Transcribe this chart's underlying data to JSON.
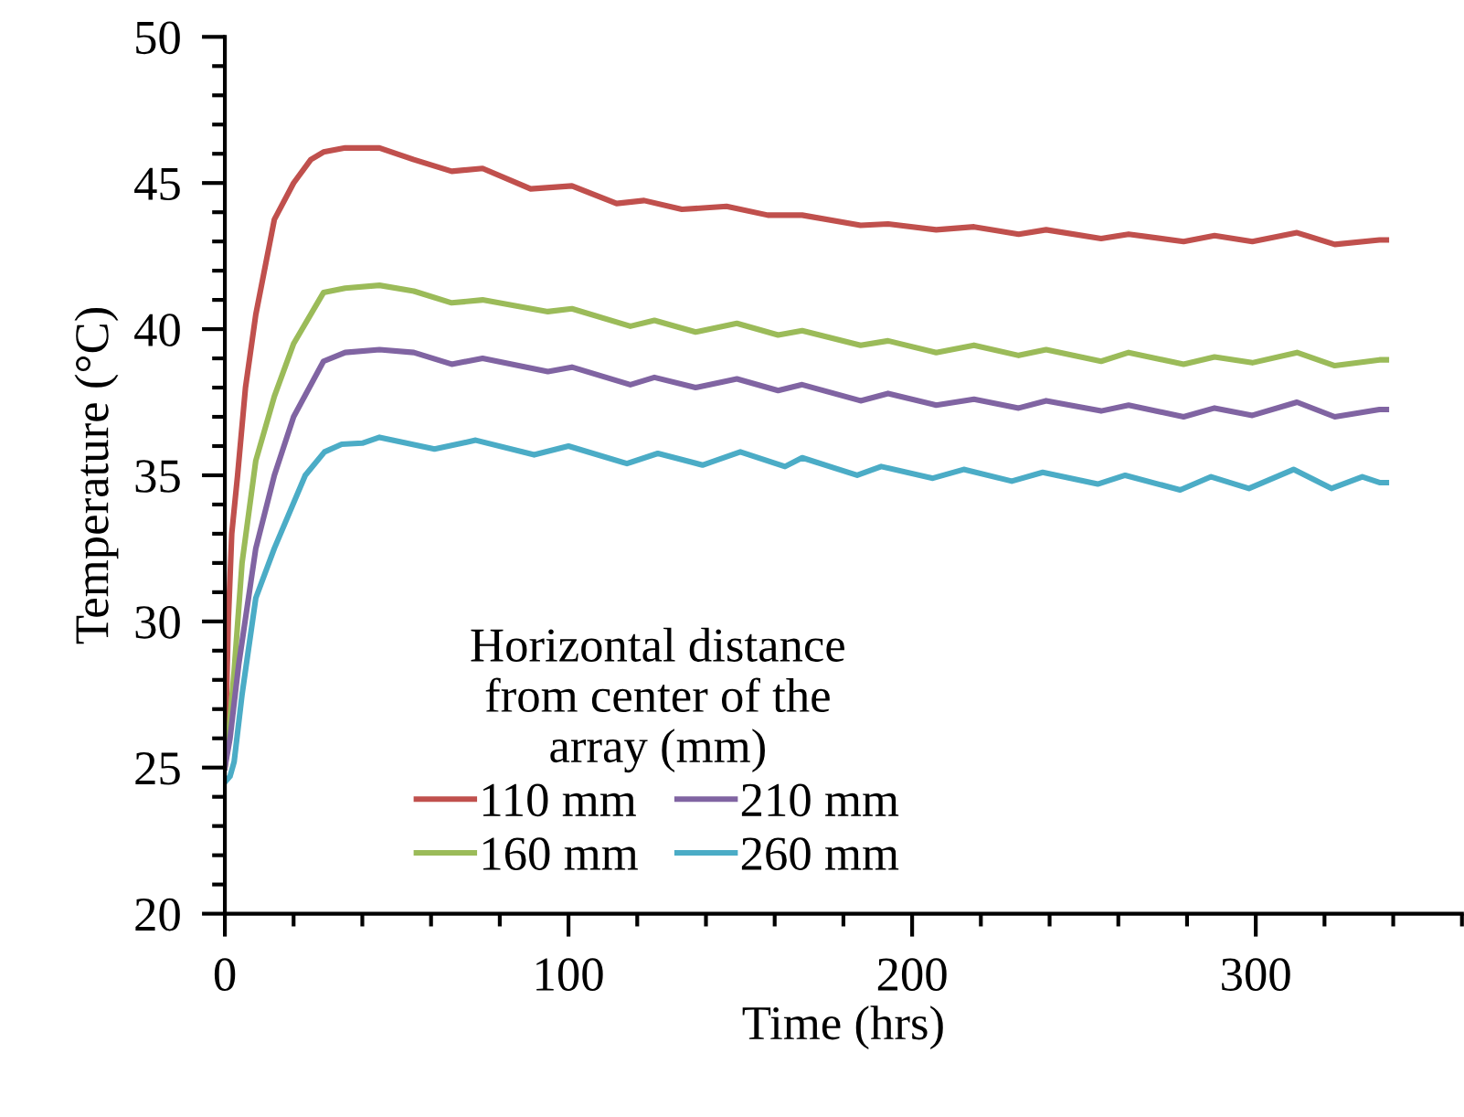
{
  "chart_data": {
    "type": "line",
    "xlabel": "Time (hrs)",
    "ylabel": "Temperature (°C)",
    "legend_title": "Horizontal distance\nfrom center of the\narray (mm)",
    "legend": "bottom",
    "grid": false,
    "marker": "none",
    "line_style": "solid",
    "xlim": [
      0,
      360
    ],
    "ylim": [
      20,
      50
    ],
    "xticks": [
      0,
      {
        "value": 20,
        "label": null
      },
      {
        "value": 40,
        "label": null
      },
      {
        "value": 60,
        "label": null
      },
      {
        "value": 80,
        "label": null
      },
      100,
      {
        "value": 120,
        "label": null
      },
      {
        "value": 140,
        "label": null
      },
      {
        "value": 160,
        "label": null
      },
      {
        "value": 180,
        "label": null
      },
      200,
      {
        "value": 220,
        "label": null
      },
      {
        "value": 240,
        "label": null
      },
      {
        "value": 260,
        "label": null
      },
      {
        "value": 280,
        "label": null
      },
      300,
      {
        "value": 320,
        "label": null
      },
      {
        "value": 340,
        "label": null
      },
      {
        "value": 360,
        "label": null
      }
    ],
    "yticks": [
      20,
      {
        "value": 21,
        "label": null
      },
      {
        "value": 22,
        "label": null
      },
      {
        "value": 23,
        "label": null
      },
      {
        "value": 24,
        "label": null
      },
      25,
      {
        "value": 26,
        "label": null
      },
      {
        "value": 27,
        "label": null
      },
      {
        "value": 28,
        "label": null
      },
      {
        "value": 29,
        "label": null
      },
      30,
      {
        "value": 31,
        "label": null
      },
      {
        "value": 32,
        "label": null
      },
      {
        "value": 33,
        "label": null
      },
      {
        "value": 34,
        "label": null
      },
      35,
      {
        "value": 36,
        "label": null
      },
      {
        "value": 37,
        "label": null
      },
      {
        "value": 38,
        "label": null
      },
      {
        "value": 39,
        "label": null
      },
      40,
      {
        "value": 41,
        "label": null
      },
      {
        "value": 42,
        "label": null
      },
      {
        "value": 43,
        "label": null
      },
      {
        "value": 44,
        "label": null
      },
      45,
      {
        "value": 46,
        "label": null
      },
      {
        "value": 47,
        "label": null
      },
      {
        "value": 48,
        "label": null
      },
      {
        "value": 49,
        "label": null
      },
      50
    ],
    "series": [
      {
        "name": "110 mm",
        "color": "#c0504d",
        "x": [
          0,
          1,
          2,
          3.7,
          6,
          9,
          14.4,
          20,
          25,
          28.7,
          35,
          45,
          55,
          66,
          75,
          89,
          101,
          114,
          122,
          133,
          146,
          158,
          168,
          185,
          193,
          207,
          218,
          231,
          239,
          255,
          263,
          279,
          288,
          299,
          312,
          323,
          336,
          338
        ],
        "values": [
          25,
          30,
          33,
          35,
          38,
          40.5,
          43.75,
          45,
          45.8,
          46.06,
          46.2,
          46.2,
          45.8,
          45.4,
          45.5,
          44.8,
          44.9,
          44.3,
          44.4,
          44.1,
          44.2,
          43.9,
          43.9,
          43.55,
          43.6,
          43.4,
          43.5,
          43.25,
          43.4,
          43.1,
          43.25,
          43,
          43.2,
          43,
          43.3,
          42.9,
          43.05,
          43.05
        ]
      },
      {
        "name": "160 mm",
        "color": "#9bbb59",
        "x": [
          0,
          1,
          2.7,
          5,
          9,
          14.4,
          20,
          28.7,
          35,
          45,
          55,
          66,
          75,
          94,
          101,
          118,
          125,
          137,
          149,
          161,
          168,
          185,
          193,
          207,
          218,
          231,
          239,
          255,
          263,
          279,
          288,
          299,
          312,
          323,
          336,
          338
        ],
        "values": [
          25,
          26,
          28.3,
          32,
          35.5,
          37.7,
          39.5,
          41.25,
          41.4,
          41.5,
          41.3,
          40.9,
          41,
          40.6,
          40.7,
          40.1,
          40.3,
          39.9,
          40.2,
          39.8,
          39.95,
          39.45,
          39.6,
          39.2,
          39.45,
          39.1,
          39.3,
          38.9,
          39.2,
          38.8,
          39.05,
          38.85,
          39.2,
          38.75,
          38.95,
          38.95
        ]
      },
      {
        "name": "210 mm",
        "color": "#8064a2",
        "x": [
          0,
          1.5,
          4,
          9,
          14.4,
          20,
          28.7,
          35,
          45,
          55,
          66,
          75,
          94,
          101,
          118,
          125,
          137,
          149,
          161,
          168,
          185,
          193,
          207,
          218,
          231,
          239,
          255,
          263,
          279,
          288,
          299,
          312,
          323,
          336,
          338
        ],
        "values": [
          25,
          26,
          28.5,
          32.5,
          35,
          37,
          38.9,
          39.2,
          39.3,
          39.2,
          38.8,
          39,
          38.55,
          38.7,
          38.1,
          38.35,
          38,
          38.3,
          37.9,
          38.1,
          37.55,
          37.8,
          37.4,
          37.6,
          37.3,
          37.55,
          37.2,
          37.4,
          37,
          37.3,
          37.05,
          37.5,
          37,
          37.25,
          37.25
        ]
      },
      {
        "name": "260 mm",
        "color": "#4bacc6",
        "x": [
          0,
          1.5,
          2.7,
          5,
          9,
          14.4,
          23.4,
          29,
          34,
          40,
          45,
          61,
          73,
          90,
          100,
          117,
          126,
          139,
          150,
          163,
          168,
          184,
          191,
          206,
          215,
          229,
          238,
          254,
          262,
          278,
          287,
          298,
          311,
          322,
          331,
          336,
          338
        ],
        "values": [
          24.5,
          24.7,
          25.2,
          27.5,
          30.8,
          32.5,
          35,
          35.8,
          36.06,
          36.1,
          36.3,
          35.9,
          36.2,
          35.7,
          36,
          35.4,
          35.75,
          35.35,
          35.8,
          35.3,
          35.6,
          35,
          35.3,
          34.9,
          35.2,
          34.8,
          35.1,
          34.7,
          35,
          34.5,
          34.95,
          34.55,
          35.2,
          34.55,
          34.95,
          34.75,
          34.75
        ]
      }
    ]
  }
}
